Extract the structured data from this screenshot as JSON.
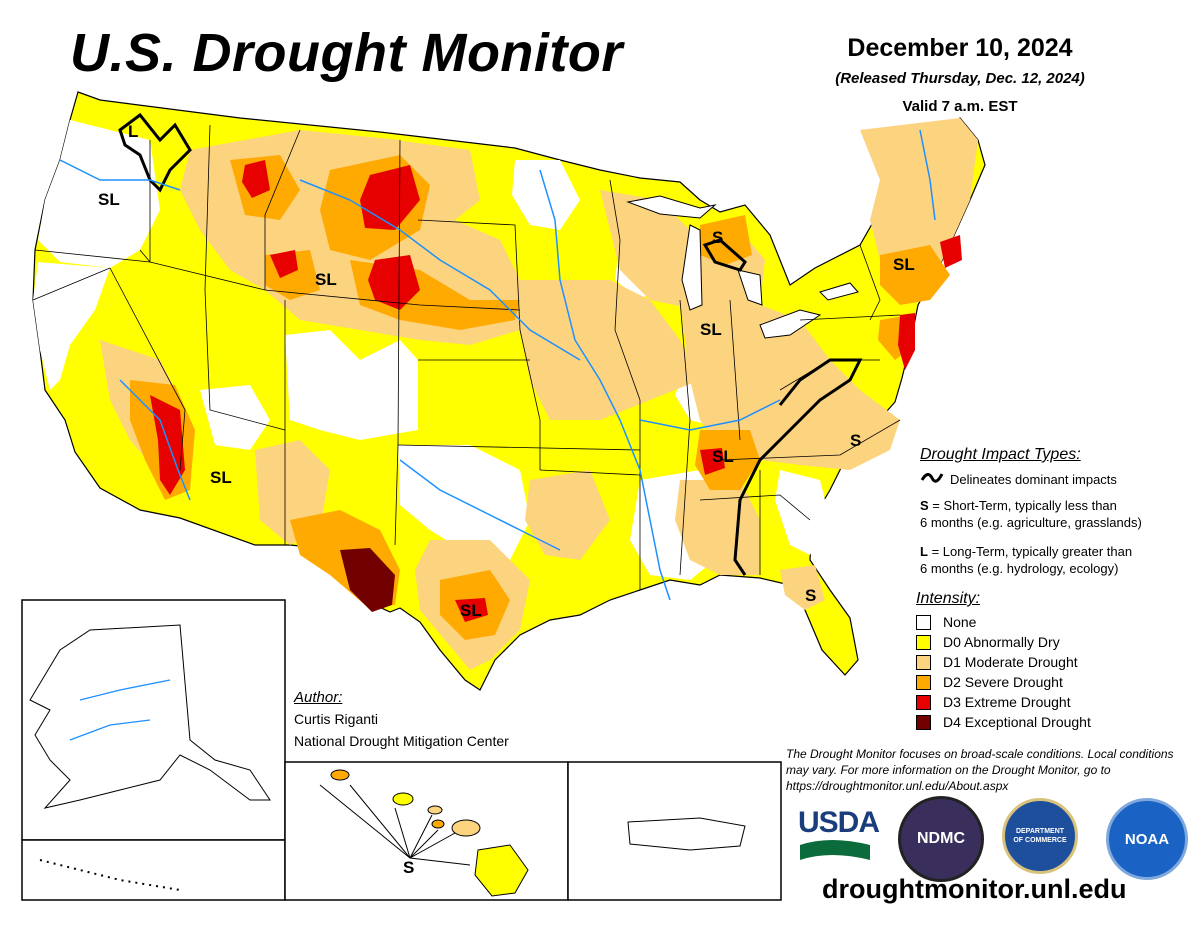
{
  "header": {
    "title": "U.S. Drought Monitor",
    "date": "December 10, 2024",
    "released": "(Released Thursday, Dec. 12, 2024)",
    "valid": "Valid 7 a.m. EST"
  },
  "impact_types": {
    "title": "Drought Impact Types:",
    "line_desc": "Delineates dominant impacts",
    "s_key": "S",
    "s_desc_1": " = Short-Term, typically less than",
    "s_desc_2": "6 months (e.g. agriculture, grasslands)",
    "l_key": "L",
    "l_desc_1": " = Long-Term, typically greater than",
    "l_desc_2": "6 months (e.g. hydrology, ecology)"
  },
  "intensity": {
    "title": "Intensity:",
    "levels": [
      {
        "label": "None",
        "color": "#ffffff"
      },
      {
        "label": "D0 Abnormally Dry",
        "color": "#ffff00"
      },
      {
        "label": "D1 Moderate Drought",
        "color": "#fcd37f"
      },
      {
        "label": "D2 Severe Drought",
        "color": "#ffaa00"
      },
      {
        "label": "D3 Extreme Drought",
        "color": "#e60000"
      },
      {
        "label": "D4 Exceptional Drought",
        "color": "#730000"
      }
    ]
  },
  "author": {
    "label": "Author:",
    "name": "Curtis Riganti",
    "organization": "National Drought Mitigation Center"
  },
  "disclaimer": "The Drought Monitor focuses on broad-scale conditions. Local conditions may vary. For more information on the Drought Monitor, go to https://droughtmonitor.unl.edu/About.aspx",
  "map_labels": {
    "sl": "SL",
    "s": "S",
    "l": "L"
  },
  "logos": {
    "usda": "USDA",
    "ndmc": "NDMC",
    "doc": "DEPARTMENT OF COMMERCE",
    "noaa": "NOAA"
  },
  "website": "droughtmonitor.unl.edu"
}
